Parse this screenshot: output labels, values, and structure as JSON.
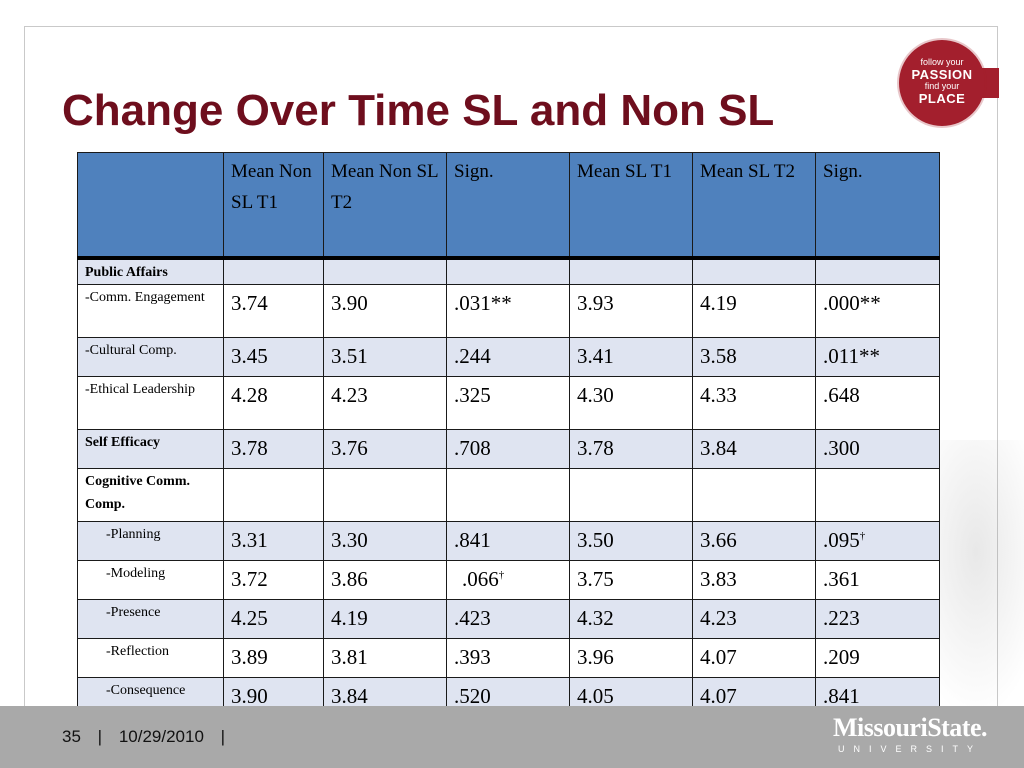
{
  "title": "Change Over Time SL and Non SL",
  "badge": {
    "line1": "follow your",
    "line2": "PASSION",
    "line3": "find your",
    "line4": "PLACE"
  },
  "table": {
    "headers": [
      "",
      "Mean Non SL T1",
      "Mean Non SL T2",
      "Sign.",
      "Mean SL T1",
      "Mean SL T2",
      "Sign."
    ],
    "rows": [
      {
        "label": "Public Affairs",
        "cells": [
          "",
          "",
          "",
          "",
          "",
          ""
        ]
      },
      {
        "label": "-Comm. Engagement",
        "cells": [
          "3.74",
          "3.90",
          ".031**",
          "3.93",
          "4.19",
          ".000**"
        ]
      },
      {
        "label": "-Cultural Comp.",
        "cells": [
          "3.45",
          "3.51",
          ".244",
          "3.41",
          "3.58",
          ".011**"
        ]
      },
      {
        "label": "-Ethical Leadership",
        "cells": [
          "4.28",
          "4.23",
          ".325",
          "4.30",
          "4.33",
          ".648"
        ]
      },
      {
        "label": "Self Efficacy",
        "cells": [
          "3.78",
          "3.76",
          ".708",
          "3.78",
          "3.84",
          ".300"
        ]
      },
      {
        "label": "Cognitive Comm. Comp.",
        "cells": [
          "",
          "",
          "",
          "",
          "",
          ""
        ]
      },
      {
        "label": "-Planning",
        "cells": [
          "3.31",
          "3.30",
          ".841",
          "3.50",
          "3.66",
          ".095"
        ]
      },
      {
        "label": "-Modeling",
        "cells": [
          "3.72",
          "3.86",
          ".066",
          "3.75",
          "3.83",
          ".361"
        ]
      },
      {
        "label": "-Presence",
        "cells": [
          "4.25",
          "4.19",
          ".423",
          "4.32",
          "4.23",
          ".223"
        ]
      },
      {
        "label": "-Reflection",
        "cells": [
          "3.89",
          "3.81",
          ".393",
          "3.96",
          "4.07",
          ".209"
        ]
      },
      {
        "label": "-Consequence",
        "cells": [
          "3.90",
          "3.84",
          ".520",
          "4.05",
          "4.07",
          ".841"
        ]
      }
    ],
    "dagger": "†"
  },
  "footer": {
    "page": "35",
    "separator": "|",
    "date": "10/29/2010"
  },
  "logo": {
    "name": "MissouriState.",
    "sub": "UNIVERSITY"
  },
  "colors": {
    "title": "#6e0e1d",
    "header": "#4f81bd",
    "tint_row": "#dfe4f1",
    "badge": "#a31f2d",
    "footer": "#a9a9a9"
  }
}
